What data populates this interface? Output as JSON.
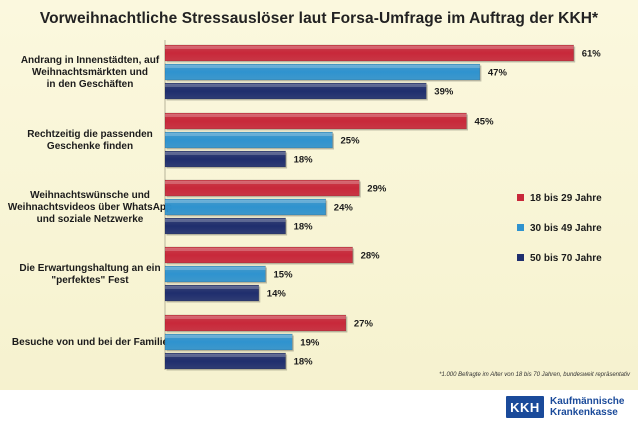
{
  "title": "Vorweihnachtliche Stressauslöser laut Forsa-Umfrage im Auftrag der KKH*",
  "footnote": "*1.000 Befragte im Alter von 18 bis 70 Jahren, bundesweit repräsentativ",
  "logo": {
    "mark": "KKH",
    "line1": "Kaufmännische",
    "line2": "Krankenkasse"
  },
  "colors": {
    "background": "#f7f3d3",
    "series_18_29": "#c8283a",
    "series_30_49": "#2f93cf",
    "series_50_70": "#1f2e6e",
    "brand": "#1a4a9a"
  },
  "chart_data": {
    "type": "bar",
    "orientation": "horizontal",
    "title": "Vorweihnachtliche Stressauslöser laut Forsa-Umfrage im Auftrag der KKH*",
    "categories": [
      [
        "Andrang in Innenstädten, auf",
        "Weihnachtsmärkten und",
        "in den Geschäften"
      ],
      [
        "Rechtzeitig die passenden",
        "Geschenke finden"
      ],
      [
        "Weihnachtswünsche und",
        "Weihnachtsvideos über WhatsApp",
        "und soziale Netzwerke"
      ],
      [
        "Die Erwartungshaltung an ein",
        "\"perfektes\" Fest"
      ],
      [
        "Besuche von und bei der Familie"
      ]
    ],
    "series": [
      {
        "name": "18 bis 29 Jahre",
        "values": [
          61,
          45,
          29,
          28,
          27
        ]
      },
      {
        "name": "30 bis 49 Jahre",
        "values": [
          47,
          25,
          24,
          15,
          19
        ]
      },
      {
        "name": "50 bis 70 Jahre",
        "values": [
          39,
          18,
          18,
          14,
          18
        ]
      }
    ],
    "value_suffix": "%",
    "xlim": [
      0,
      65
    ],
    "grid": false,
    "legend_position": "right"
  }
}
